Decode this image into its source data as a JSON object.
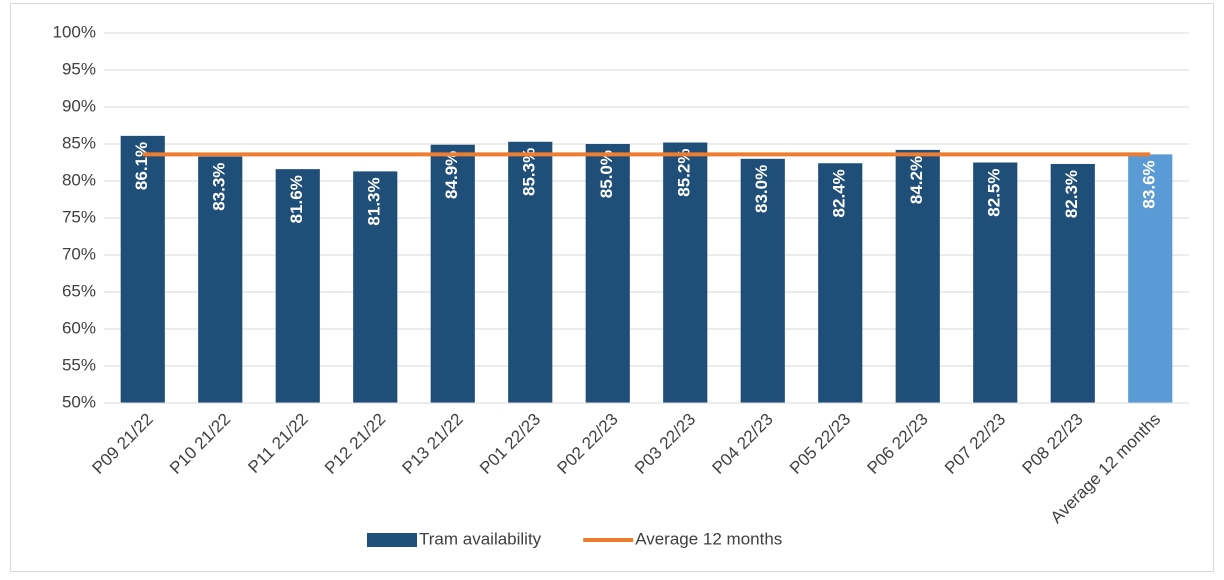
{
  "chart_data": {
    "type": "bar",
    "categories": [
      "P09 21/22",
      "P10 21/22",
      "P11 21/22",
      "P12 21/22",
      "P13 21/22",
      "P01 22/23",
      "P02 22/23",
      "P03 22/23",
      "P04 22/23",
      "P05 22/23",
      "P06 22/23",
      "P07 22/23",
      "P08 22/23",
      "Average 12 months"
    ],
    "series": [
      {
        "name": "Tram availability",
        "type": "bar",
        "color": "#1f4e79",
        "point_colors": [
          "#1f4e79",
          "#1f4e79",
          "#1f4e79",
          "#1f4e79",
          "#1f4e79",
          "#1f4e79",
          "#1f4e79",
          "#1f4e79",
          "#1f4e79",
          "#1f4e79",
          "#1f4e79",
          "#1f4e79",
          "#1f4e79",
          "#5b9bd5"
        ],
        "values": [
          86.1,
          83.3,
          81.6,
          81.3,
          84.9,
          85.3,
          85.0,
          85.2,
          83.0,
          82.4,
          84.2,
          82.5,
          82.3,
          83.6
        ],
        "value_labels": [
          "86.1%",
          "83.3%",
          "81.6%",
          "81.3%",
          "84.9%",
          "85.3%",
          "85.0%",
          "85.2%",
          "83.0%",
          "82.4%",
          "84.2%",
          "82.5%",
          "82.3%",
          "83.6%"
        ]
      },
      {
        "name": "Average 12 months",
        "type": "line",
        "color": "#ed7d31",
        "values": [
          83.6,
          83.6,
          83.6,
          83.6,
          83.6,
          83.6,
          83.6,
          83.6,
          83.6,
          83.6,
          83.6,
          83.6,
          83.6,
          83.6
        ]
      }
    ],
    "ylim": [
      50,
      100
    ],
    "yticks": [
      {
        "value": 50,
        "label": "50%"
      },
      {
        "value": 55,
        "label": "55%"
      },
      {
        "value": 60,
        "label": "60%"
      },
      {
        "value": 65,
        "label": "65%"
      },
      {
        "value": 70,
        "label": "70%"
      },
      {
        "value": 75,
        "label": "75%"
      },
      {
        "value": 80,
        "label": "80%"
      },
      {
        "value": 85,
        "label": "85%"
      },
      {
        "value": 90,
        "label": "90%"
      },
      {
        "value": 95,
        "label": "95%"
      },
      {
        "value": 100,
        "label": "100%"
      }
    ],
    "grid": true,
    "legend": "bottom"
  }
}
